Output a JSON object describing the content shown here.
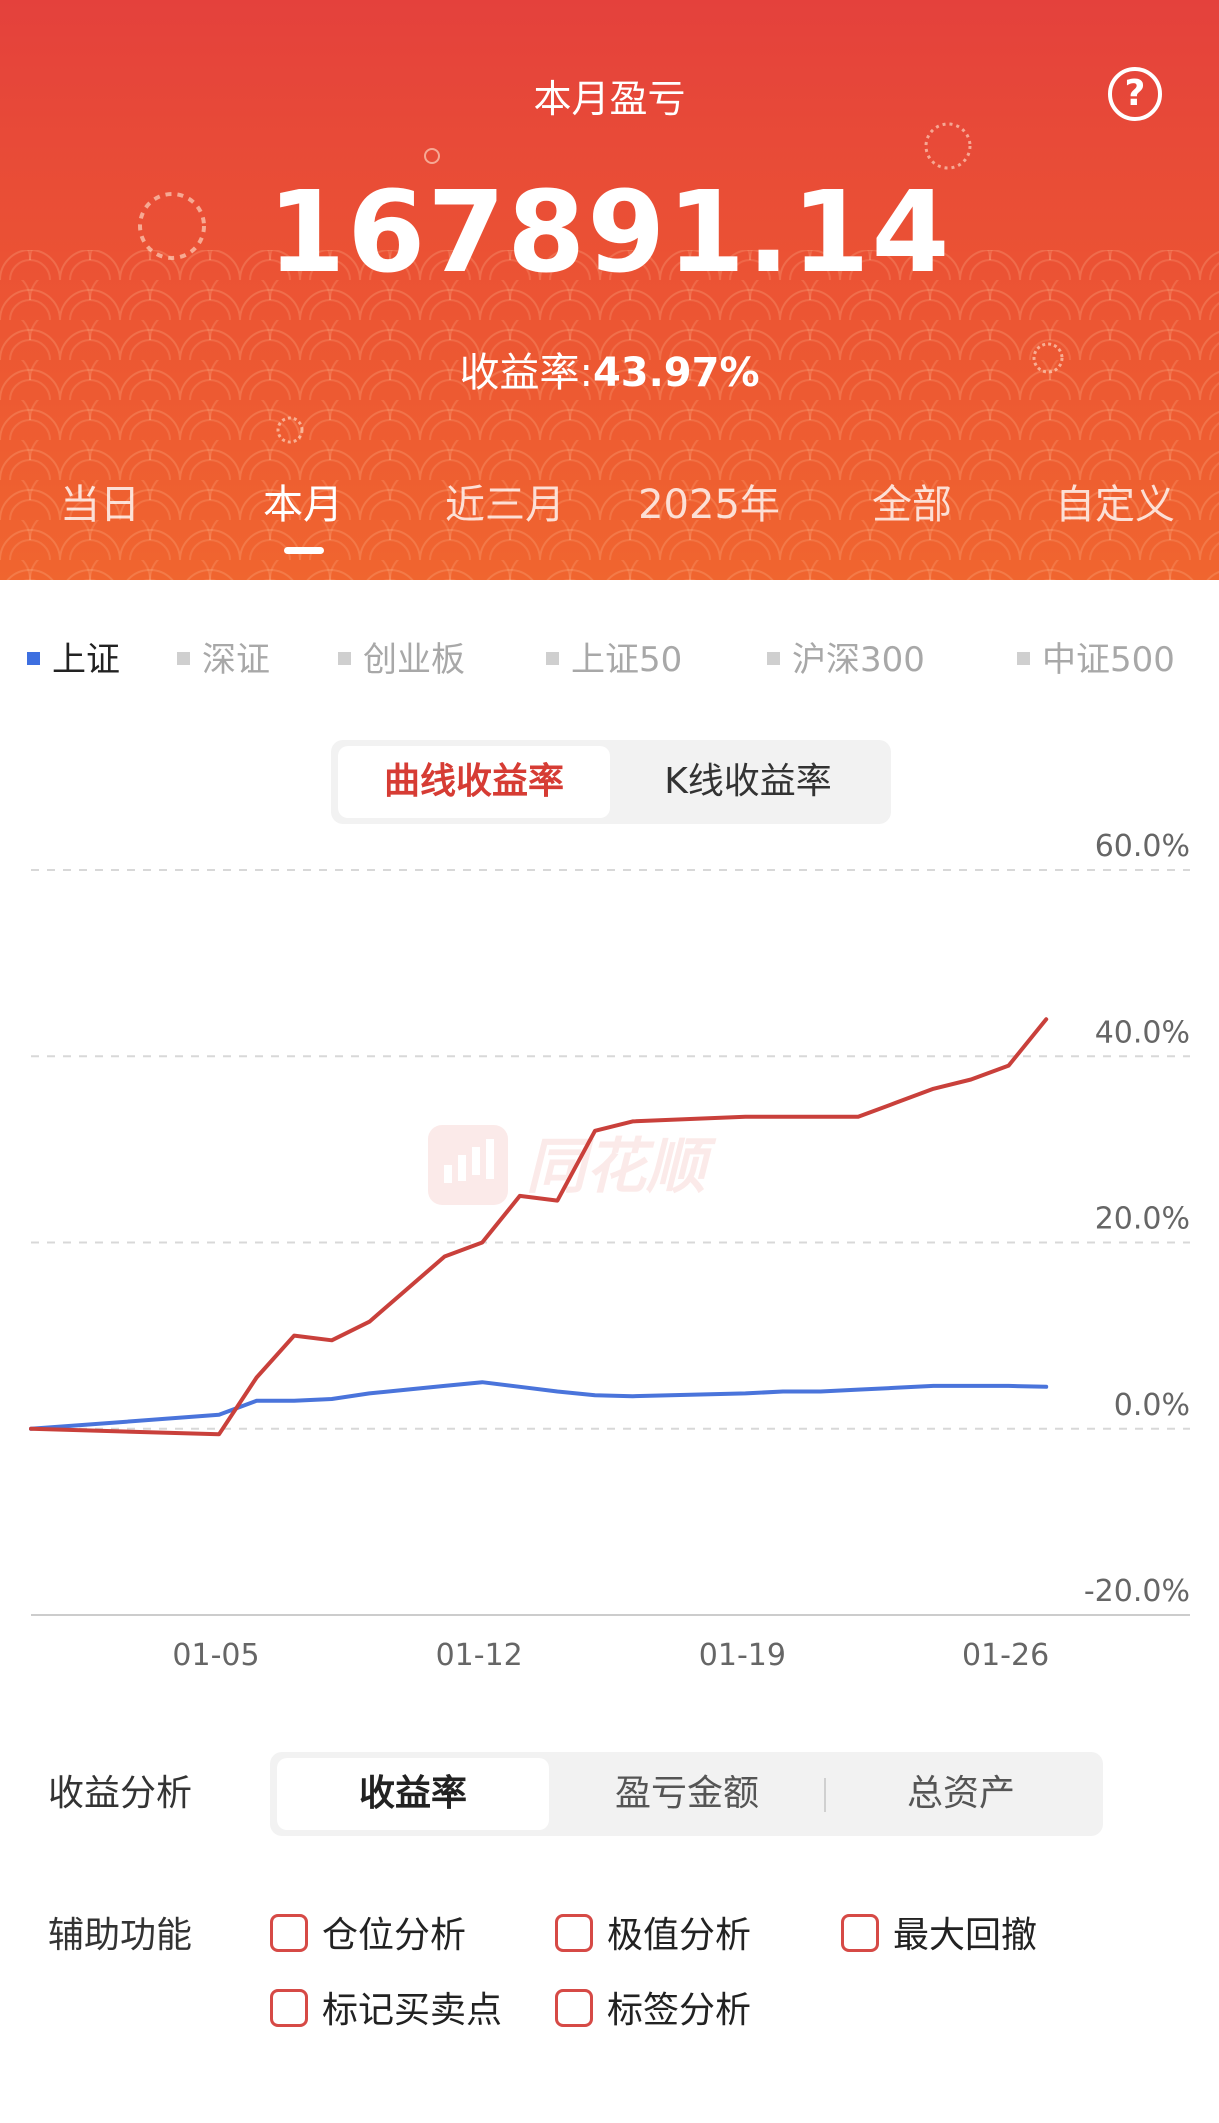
{
  "header": {
    "title": "本月盈亏",
    "amount": "167891.14",
    "rate_label": "收益率:",
    "rate_value": "43.97%",
    "help_icon": "question-circle-icon",
    "bg_color": "#e8473a"
  },
  "periods": [
    {
      "label": "当日",
      "active": false
    },
    {
      "label": "本月",
      "active": true
    },
    {
      "label": "近三月",
      "active": false
    },
    {
      "label": "2025年",
      "active": false
    },
    {
      "label": "全部",
      "active": false
    },
    {
      "label": "自定义",
      "active": false
    }
  ],
  "index_tabs": [
    {
      "label": "上证",
      "active": true
    },
    {
      "label": "深证",
      "active": false
    },
    {
      "label": "创业板",
      "active": false
    },
    {
      "label": "上证50",
      "active": false
    },
    {
      "label": "沪深300",
      "active": false
    },
    {
      "label": "中证500",
      "active": false
    }
  ],
  "chart_mode": {
    "options": [
      "曲线收益率",
      "K线收益率"
    ],
    "active": "曲线收益率"
  },
  "watermark": {
    "text": "同花顺"
  },
  "chart_data": {
    "type": "line",
    "title": "",
    "xlabel": "",
    "ylabel": "",
    "x_ticks": [
      "01-05",
      "01-12",
      "01-19",
      "01-26"
    ],
    "y_ticks": [
      "60.0%",
      "40.0%",
      "20.0%",
      "0.0%",
      "-20.0%"
    ],
    "ylim": [
      -20,
      60
    ],
    "grid": true,
    "x_unit": "day of January",
    "series": [
      {
        "name": "",
        "color": "#c9403b",
        "x": [
          0,
          5,
          6,
          7,
          8,
          9,
          10,
          11,
          12,
          13,
          14,
          15,
          16,
          19,
          20,
          21,
          22,
          23,
          24,
          25,
          26,
          27
        ],
        "values": [
          0.0,
          -0.6,
          5.5,
          10.0,
          9.5,
          11.5,
          15.0,
          18.5,
          20.0,
          25.0,
          24.5,
          32.0,
          33.0,
          33.5,
          33.5,
          33.5,
          33.5,
          35.0,
          36.5,
          37.5,
          39.0,
          43.97
        ]
      },
      {
        "name": "上证",
        "color": "#4a74db",
        "x": [
          0,
          5,
          6,
          7,
          8,
          9,
          10,
          11,
          12,
          13,
          14,
          15,
          16,
          19,
          20,
          21,
          22,
          23,
          24,
          25,
          26,
          27
        ],
        "values": [
          0.0,
          1.5,
          3.0,
          3.0,
          3.2,
          3.8,
          4.2,
          4.6,
          5.0,
          4.5,
          4.0,
          3.6,
          3.5,
          3.8,
          4.0,
          4.0,
          4.2,
          4.4,
          4.6,
          4.6,
          4.6,
          4.5
        ]
      }
    ]
  },
  "analysis": {
    "label": "收益分析",
    "options": [
      "收益率",
      "盈亏金额",
      "总资产"
    ],
    "active": "收益率"
  },
  "aux": {
    "label": "辅助功能",
    "items": [
      "仓位分析",
      "极值分析",
      "最大回撤",
      "标记买卖点",
      "标签分析"
    ],
    "checkbox_color": "#d64a46"
  }
}
